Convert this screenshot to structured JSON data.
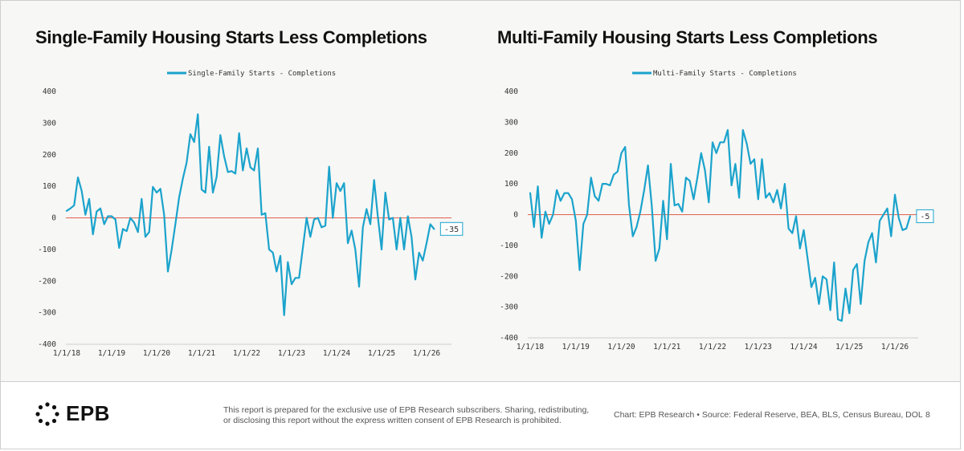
{
  "footer": {
    "logo_text": "EPB",
    "disclaimer": "This report is prepared for the exclusive use of EPB Research subscribers. Sharing, redistributing, or disclosing this report without the express written consent of EPB Research is prohibited.",
    "source": "Chart: EPB Research  •  Source: Federal Reserve, BEA, BLS, Census Bureau, DOL",
    "page_number": "8"
  },
  "colors": {
    "line": "#1ba3cc",
    "zero_line": "#e0604a",
    "axis": "#999999",
    "background": "#f7f7f5"
  },
  "chart_data": [
    {
      "type": "line",
      "title": "Single-Family Housing Starts Less Completions",
      "legend": "top-center",
      "grid": false,
      "x_start": "2018-01",
      "x_step": "monthly",
      "ylim": [
        -400,
        400
      ],
      "yticks": [
        400,
        300,
        200,
        100,
        0,
        -100,
        -200,
        -300,
        -400
      ],
      "xtick_labels": [
        "1/1/18",
        "1/1/19",
        "1/1/20",
        "1/1/21",
        "1/1/22",
        "1/1/23",
        "1/1/24",
        "1/1/25",
        "1/1/26"
      ],
      "last_value_label": "-35",
      "series": [
        {
          "name": "Single-Family Starts - Completions",
          "values": [
            22,
            30,
            40,
            128,
            85,
            10,
            60,
            -52,
            20,
            30,
            -20,
            5,
            5,
            -5,
            -95,
            -35,
            -42,
            0,
            -15,
            -45,
            60,
            -60,
            -45,
            98,
            80,
            92,
            10,
            -170,
            -100,
            -20,
            65,
            125,
            175,
            265,
            240,
            328,
            90,
            80,
            225,
            80,
            130,
            262,
            195,
            145,
            148,
            140,
            268,
            150,
            220,
            160,
            150,
            220,
            10,
            15,
            -100,
            -110,
            -170,
            -120,
            -308,
            -140,
            -210,
            -190,
            -190,
            -95,
            0,
            -60,
            -5,
            0,
            -30,
            -25,
            162,
            0,
            110,
            85,
            110,
            -80,
            -40,
            -100,
            -218,
            -30,
            28,
            -20,
            120,
            5,
            -100,
            80,
            -5,
            0,
            -100,
            0,
            -100,
            5,
            -60,
            -195,
            -110,
            -135,
            -80,
            -20,
            -35
          ]
        }
      ]
    },
    {
      "type": "line",
      "title": "Multi-Family Housing Starts Less Completions",
      "legend": "top-center",
      "grid": false,
      "x_start": "2018-01",
      "x_step": "monthly",
      "ylim": [
        -400,
        400
      ],
      "yticks": [
        400,
        300,
        200,
        100,
        0,
        -100,
        -200,
        -300,
        -400
      ],
      "xtick_labels": [
        "1/1/18",
        "1/1/19",
        "1/1/20",
        "1/1/21",
        "1/1/22",
        "1/1/23",
        "1/1/24",
        "1/1/25",
        "1/1/26"
      ],
      "last_value_label": "-5",
      "series": [
        {
          "name": "Multi-Family Starts - Completions",
          "values": [
            70,
            -40,
            92,
            -75,
            10,
            -30,
            0,
            80,
            45,
            70,
            70,
            50,
            -20,
            -180,
            -30,
            0,
            120,
            60,
            45,
            100,
            100,
            95,
            130,
            140,
            200,
            220,
            30,
            -70,
            -40,
            10,
            80,
            160,
            30,
            -150,
            -110,
            45,
            -80,
            165,
            30,
            35,
            10,
            120,
            110,
            50,
            120,
            200,
            145,
            40,
            235,
            200,
            235,
            235,
            275,
            95,
            165,
            55,
            275,
            230,
            165,
            180,
            50,
            180,
            55,
            70,
            40,
            80,
            20,
            100,
            -45,
            -60,
            -5,
            -110,
            -50,
            -140,
            -235,
            -205,
            -290,
            -200,
            -210,
            -310,
            -155,
            -340,
            -345,
            -240,
            -320,
            -180,
            -160,
            -290,
            -150,
            -90,
            -60,
            -155,
            -20,
            0,
            20,
            -70,
            65,
            -10,
            -50,
            -45,
            -5
          ]
        }
      ]
    }
  ]
}
